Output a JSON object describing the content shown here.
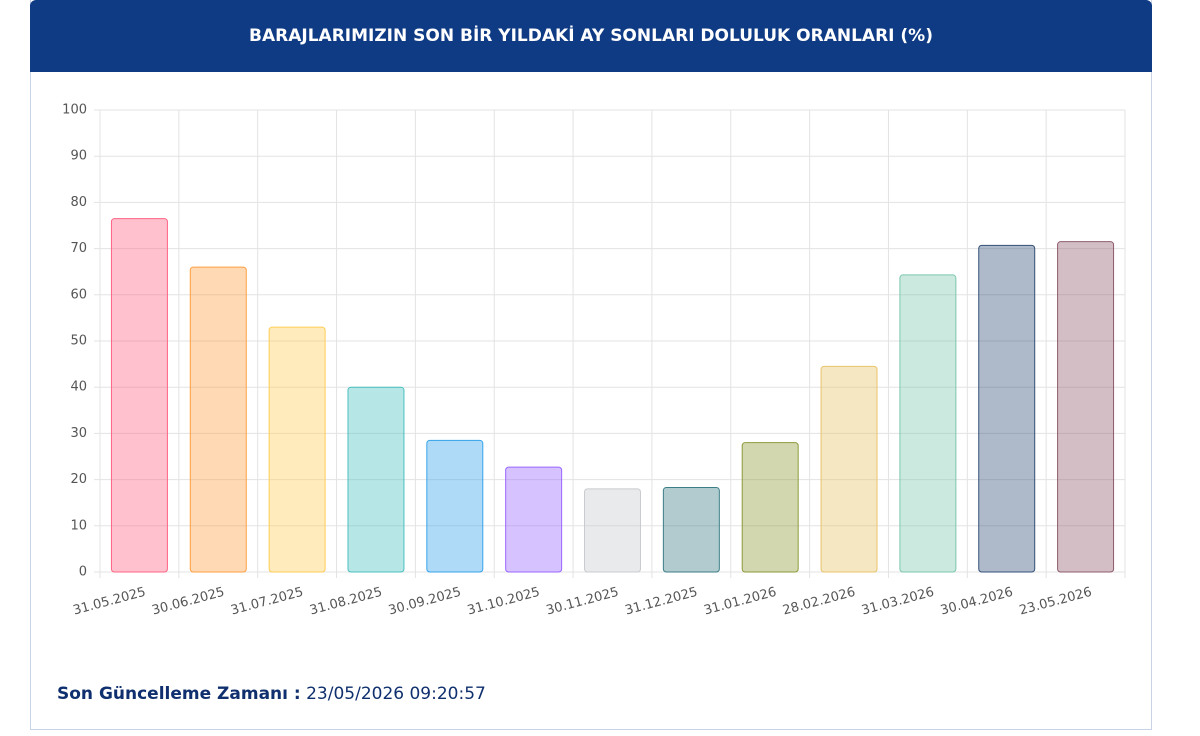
{
  "chart_data": {
    "type": "bar",
    "title": "BARAJLARIMIZIN SON BİR YILDAKİ AY SONLARI DOLULUK ORANLARI (%)",
    "categories": [
      "31.05.2025",
      "30.06.2025",
      "31.07.2025",
      "31.08.2025",
      "30.09.2025",
      "31.10.2025",
      "30.11.2025",
      "31.12.2025",
      "31.01.2026",
      "28.02.2026",
      "31.03.2026",
      "30.04.2026",
      "23.05.2026"
    ],
    "values": [
      76.5,
      66,
      53,
      40,
      28.5,
      22.7,
      18,
      18.3,
      28,
      44.5,
      64.3,
      70.7,
      71.5
    ],
    "colors": [
      "#ff6384",
      "#ff9f40",
      "#ffcd56",
      "#4bc0c0",
      "#36a2eb",
      "#9966ff",
      "#c9cbcf",
      "#3c7e86",
      "#8f9a3a",
      "#e9c46a",
      "#7cc7ad",
      "#34507a",
      "#8f5c6c"
    ],
    "ylim": [
      0,
      100
    ],
    "yticks": [
      0,
      10,
      20,
      30,
      40,
      50,
      60,
      70,
      80,
      90,
      100
    ],
    "grid": true
  },
  "footer": {
    "label": "Son Güncelleme Zamanı :",
    "value": "23/05/2026 09:20:57"
  }
}
